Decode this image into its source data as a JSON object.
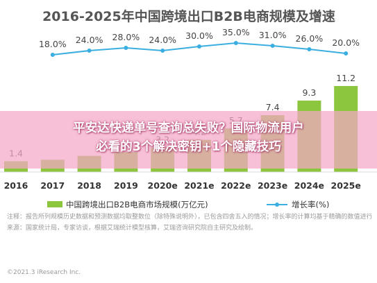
{
  "chart_data": {
    "type": "bar",
    "title": "2016-2025年中国跨境出口B2B电商规模及增速",
    "categories": [
      "2016",
      "2017",
      "2018",
      "2019",
      "2020e",
      "2021e",
      "2022e",
      "2023e",
      "2024e",
      "2025e"
    ],
    "series": [
      {
        "name": "中国跨境出口B2B电商市场规模(万亿元)",
        "type": "bar",
        "values": [
          1.4,
          1.6,
          2.1,
          2.6,
          3.2,
          4.2,
          5.7,
          7.4,
          9.3,
          11.2
        ],
        "labels": [
          "1.4",
          "",
          "",
          "",
          "3.2",
          "4.2",
          "5.7",
          "7.4",
          "9.3",
          "11.2"
        ]
      },
      {
        "name": "增长率(%)",
        "type": "line",
        "values": [
          18.0,
          24.0,
          28.0,
          24.0,
          30.0,
          35.0,
          31.0,
          26.0,
          20.0
        ],
        "labels": [
          "18.0%",
          "24.0%",
          "28.0%",
          "24.0%",
          "30.0%",
          "35.0%",
          "31.0%",
          "26.0%",
          "20.0%"
        ],
        "x": [
          "2017",
          "2018",
          "2019",
          "2020e",
          "2021e",
          "2022e",
          "2023e",
          "2024e",
          "2025e"
        ]
      }
    ],
    "colors": {
      "bar": "#8cc63f",
      "line": "#3aaee0",
      "title": "#555555"
    }
  },
  "notes": [
    "注释：报告所列规模历史数据和预测数据均取整数位（除特殊说明外），已包含四舍五入的情况；增长率的计算均基于精确的数值进行计算。",
    "来源：国家统计局，专家访谈，根据艾瑞统计模型核算，艾瑞咨询研究院自主研究及绘制。"
  ],
  "notes_extra": "说明：",
  "source": "©2021.3 iResearch Inc.",
  "overlay": {
    "line1": "平安达快递单号查询总失败？国际物流用户",
    "line2": "必看的3个解决密钥+1个隐藏技巧"
  }
}
